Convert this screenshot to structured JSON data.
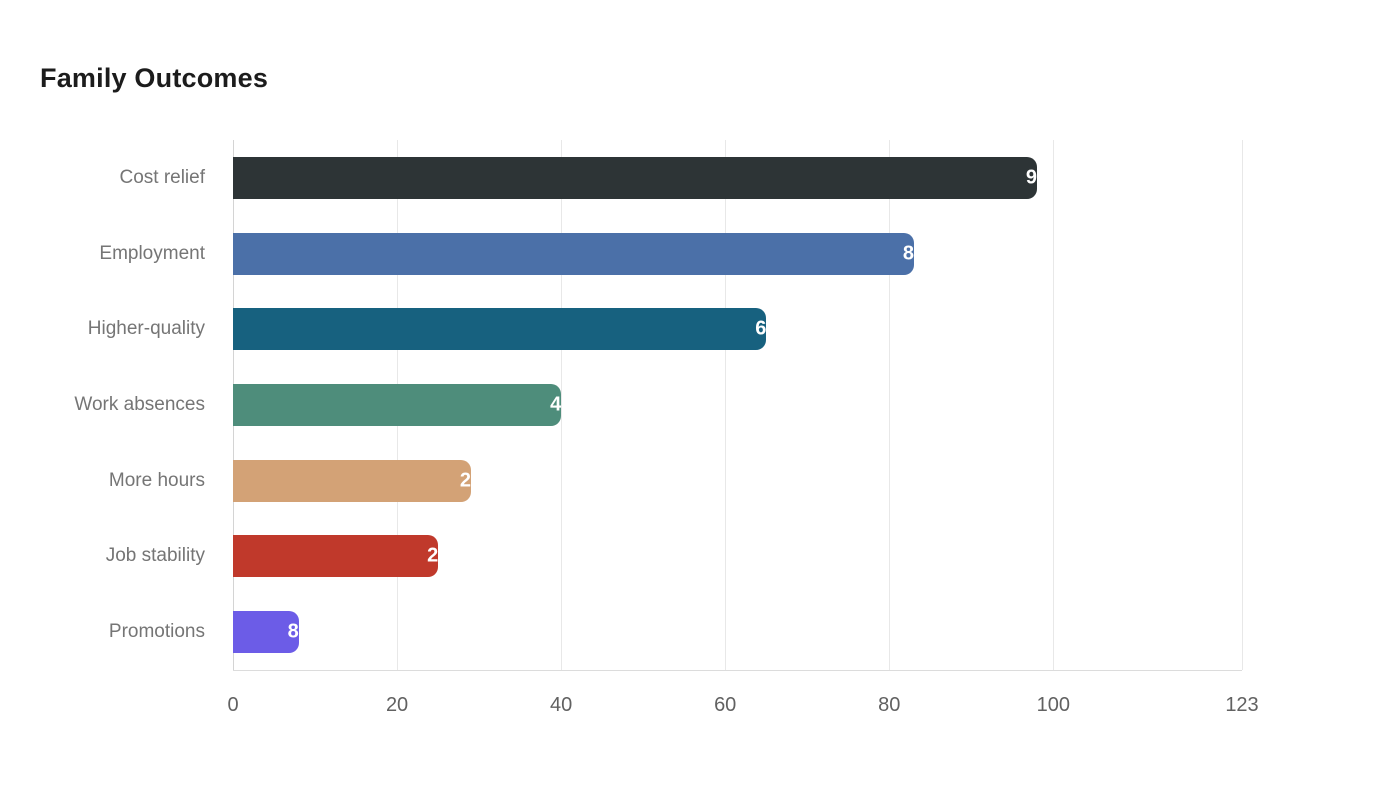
{
  "page_title": "Family Outcomes",
  "colors": {
    "background": "#ffffff",
    "title_text": "#1c1c1c",
    "category_label_text": "#757575",
    "tick_label_text": "#616161",
    "gridline": "#e8e8e8",
    "axis_line": "#d4d4d4",
    "value_label_text": "#ffffff"
  },
  "chart_data": {
    "type": "bar",
    "orientation": "horizontal",
    "title": "Family Outcomes",
    "categories": [
      "Cost relief",
      "Employment",
      "Higher-quality",
      "Work absences",
      "More hours",
      "Job stability",
      "Promotions"
    ],
    "values": [
      98,
      83,
      65,
      40,
      29,
      25,
      8
    ],
    "bar_colors": [
      "#2d3436",
      "#4b70a8",
      "#17617f",
      "#4e8d7b",
      "#d3a276",
      "#c0392b",
      "#6c5ce7"
    ],
    "xlabel": "",
    "ylabel": "",
    "xlim": [
      0,
      123
    ],
    "x_ticks": [
      0,
      20,
      40,
      60,
      80,
      100,
      123
    ],
    "grid": true,
    "legend": false,
    "value_labels": {
      "visible": true,
      "position": "end",
      "color": "#ffffff"
    }
  }
}
